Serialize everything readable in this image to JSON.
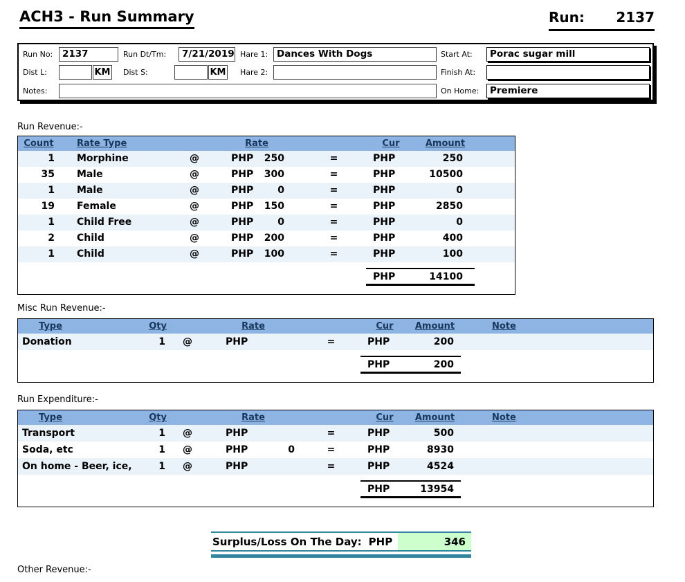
{
  "header": {
    "title": "ACH3 - Run Summary",
    "run_label": "Run:",
    "run_number": "2137"
  },
  "run_info": {
    "run_no": {
      "label": "Run No:",
      "value": "2137"
    },
    "run_dt": {
      "label": "Run Dt/Tm:",
      "value": "7/21/2019"
    },
    "hare1": {
      "label": "Hare 1:",
      "value": "Dances With Dogs"
    },
    "start_at": {
      "label": "Start At:",
      "value": "Porac sugar mill"
    },
    "dist_l": {
      "label": "Dist L:",
      "value": "",
      "unit": "KM"
    },
    "dist_s": {
      "label": "Dist S:",
      "value": "",
      "unit": "KM"
    },
    "hare2": {
      "label": "Hare 2:",
      "value": ""
    },
    "finish_at": {
      "label": "Finish At:",
      "value": ""
    },
    "notes": {
      "label": "Notes:",
      "value": ""
    },
    "on_home": {
      "label": "On Home:",
      "value": "Premiere"
    }
  },
  "run_revenue": {
    "title": "Run Revenue:-",
    "headers": {
      "count": "Count",
      "rate_type": "Rate Type",
      "rate": "Rate",
      "cur": "Cur",
      "amount": "Amount"
    },
    "rows": [
      {
        "count": "1",
        "rate_type": "Morphine",
        "at": "@",
        "rate_cur": "PHP",
        "rate": "250",
        "eq": "=",
        "cur": "PHP",
        "amount": "250"
      },
      {
        "count": "35",
        "rate_type": "Male",
        "at": "@",
        "rate_cur": "PHP",
        "rate": "300",
        "eq": "=",
        "cur": "PHP",
        "amount": "10500"
      },
      {
        "count": "1",
        "rate_type": "Male",
        "at": "@",
        "rate_cur": "PHP",
        "rate": "0",
        "eq": "=",
        "cur": "PHP",
        "amount": "0"
      },
      {
        "count": "19",
        "rate_type": "Female",
        "at": "@",
        "rate_cur": "PHP",
        "rate": "150",
        "eq": "=",
        "cur": "PHP",
        "amount": "2850"
      },
      {
        "count": "1",
        "rate_type": "Child Free",
        "at": "@",
        "rate_cur": "PHP",
        "rate": "0",
        "eq": "=",
        "cur": "PHP",
        "amount": "0"
      },
      {
        "count": "2",
        "rate_type": "Child",
        "at": "@",
        "rate_cur": "PHP",
        "rate": "200",
        "eq": "=",
        "cur": "PHP",
        "amount": "400"
      },
      {
        "count": "1",
        "rate_type": "Child",
        "at": "@",
        "rate_cur": "PHP",
        "rate": "100",
        "eq": "=",
        "cur": "PHP",
        "amount": "100"
      }
    ],
    "total": {
      "cur": "PHP",
      "amount": "14100"
    }
  },
  "misc_revenue": {
    "title": "Misc Run Revenue:-",
    "headers": {
      "type": "Type",
      "qty": "Qty",
      "rate": "Rate",
      "cur": "Cur",
      "amount": "Amount",
      "note": "Note"
    },
    "rows": [
      {
        "type": "Donation",
        "qty": "1",
        "at": "@",
        "rate_cur": "PHP",
        "rate": "",
        "eq": "=",
        "cur": "PHP",
        "amount": "200",
        "note": ""
      }
    ],
    "total": {
      "cur": "PHP",
      "amount": "200"
    }
  },
  "run_expenditure": {
    "title": "Run Expenditure:-",
    "headers": {
      "type": "Type",
      "qty": "Qty",
      "rate": "Rate",
      "cur": "Cur",
      "amount": "Amount",
      "note": "Note"
    },
    "rows": [
      {
        "type": "Transport",
        "qty": "1",
        "at": "@",
        "rate_cur": "PHP",
        "rate": "",
        "eq": "=",
        "cur": "PHP",
        "amount": "500",
        "note": ""
      },
      {
        "type": "Soda, etc",
        "qty": "1",
        "at": "@",
        "rate_cur": "PHP",
        "rate": "0",
        "eq": "=",
        "cur": "PHP",
        "amount": "8930",
        "note": ""
      },
      {
        "type": "On home - Beer, ice,",
        "qty": "1",
        "at": "@",
        "rate_cur": "PHP",
        "rate": "",
        "eq": "=",
        "cur": "PHP",
        "amount": "4524",
        "note": ""
      }
    ],
    "total": {
      "cur": "PHP",
      "amount": "13954"
    }
  },
  "surplus": {
    "label": "Surplus/Loss On The Day:",
    "cur": "PHP",
    "amount": "346"
  },
  "other_revenue": {
    "title": "Other Revenue:-"
  },
  "colors": {
    "table_header_bg": "#8DB4E2",
    "table_header_text": "#17375D",
    "row_alt_bg": "#EAF2FA",
    "surplus_green": "#CCFFCC",
    "teal_rule": "#31859C"
  }
}
